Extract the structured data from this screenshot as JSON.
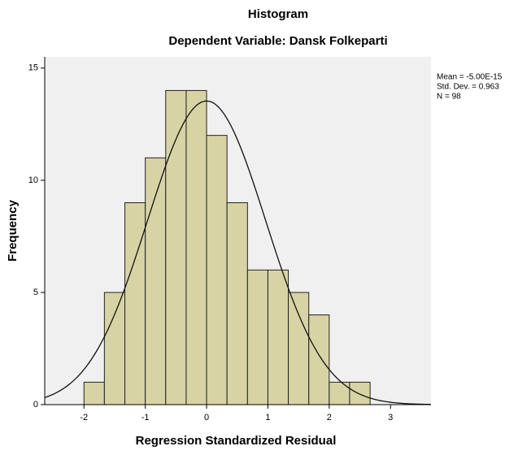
{
  "chart_data": {
    "type": "histogram",
    "title": "Histogram",
    "subtitle": "Dependent Variable: Dansk Folkeparti",
    "x_label": "Regression Standardized Residual",
    "y_label": "Frequency",
    "bins": [
      -2,
      -1.667,
      -1.333,
      -1,
      -0.667,
      -0.333,
      0,
      0.333,
      0.667,
      1,
      1.333,
      1.667,
      2,
      2.333,
      2.667
    ],
    "values": [
      1,
      5,
      9,
      11,
      14,
      14,
      12,
      9,
      6,
      6,
      5,
      4,
      1,
      1
    ],
    "color": "#d8d3a4",
    "xlim": [
      -2.64,
      3.66
    ],
    "ylim": [
      0,
      15.5
    ],
    "xticks": [
      -2,
      -1,
      0,
      1,
      2,
      3
    ],
    "yticks": [
      0,
      5,
      10,
      15
    ],
    "normal_curve": {
      "mean": {
        "value": -5e-15,
        "label": "Mean = -5.00E-15"
      },
      "sd": {
        "value": 0.963,
        "label": "Std. Dev. = 0.963"
      },
      "n": {
        "value": 98,
        "label": "N = 98"
      }
    }
  }
}
